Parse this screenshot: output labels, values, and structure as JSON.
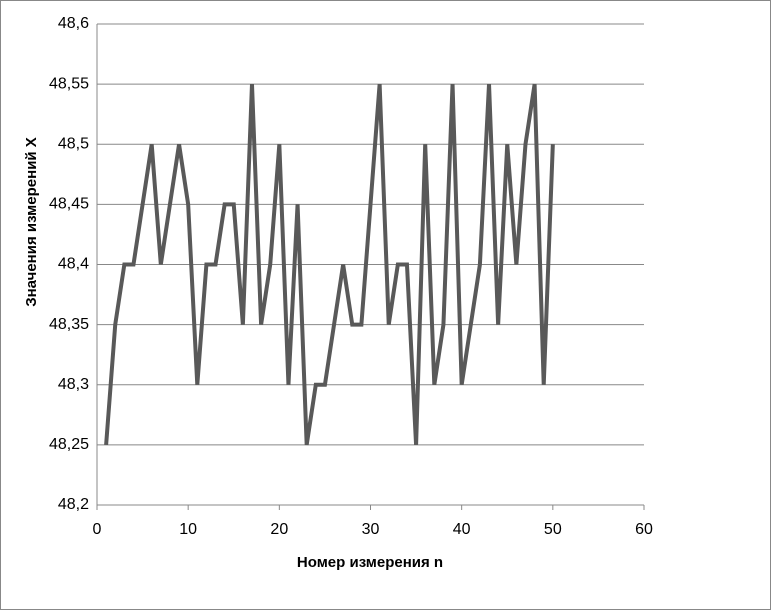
{
  "chart_data": {
    "type": "line",
    "x_label": "Номер измерения n",
    "y_label": "Значения измерений  X",
    "x": [
      1,
      2,
      3,
      4,
      5,
      6,
      7,
      8,
      9,
      10,
      11,
      12,
      13,
      14,
      15,
      16,
      17,
      18,
      19,
      20,
      21,
      22,
      23,
      24,
      25,
      26,
      27,
      28,
      29,
      30,
      31,
      32,
      33,
      34,
      35,
      36,
      37,
      38,
      39,
      40,
      41,
      42,
      43,
      44,
      45,
      46,
      47,
      48,
      49,
      50
    ],
    "series": [
      {
        "color": "#595959",
        "values": [
          48.25,
          48.35,
          48.4,
          48.4,
          48.45,
          48.5,
          48.4,
          48.45,
          48.5,
          48.45,
          48.3,
          48.4,
          48.4,
          48.45,
          48.45,
          48.35,
          48.55,
          48.35,
          48.4,
          48.5,
          48.3,
          48.45,
          48.25,
          48.3,
          48.3,
          48.35,
          48.4,
          48.35,
          48.35,
          48.45,
          48.55,
          48.35,
          48.4,
          48.4,
          48.25,
          48.5,
          48.3,
          48.35,
          48.55,
          48.3,
          48.35,
          48.4,
          48.55,
          48.35,
          48.5,
          48.4,
          48.5,
          48.55,
          48.3,
          48.5
        ]
      }
    ],
    "xlim": [
      0,
      60
    ],
    "xticks": [
      0,
      10,
      20,
      30,
      40,
      50,
      60
    ],
    "ylim": [
      48.2,
      48.6
    ],
    "yticks": [
      {
        "value": 48.2,
        "label": "48,2"
      },
      {
        "value": 48.25,
        "label": "48,25"
      },
      {
        "value": 48.3,
        "label": "48,3"
      },
      {
        "value": 48.35,
        "label": "48,35"
      },
      {
        "value": 48.4,
        "label": "48,4"
      },
      {
        "value": 48.45,
        "label": "48,45"
      },
      {
        "value": 48.5,
        "label": "48,5"
      },
      {
        "value": 48.55,
        "label": "48,55"
      },
      {
        "value": 48.6,
        "label": "48,6"
      }
    ],
    "grid": true
  }
}
